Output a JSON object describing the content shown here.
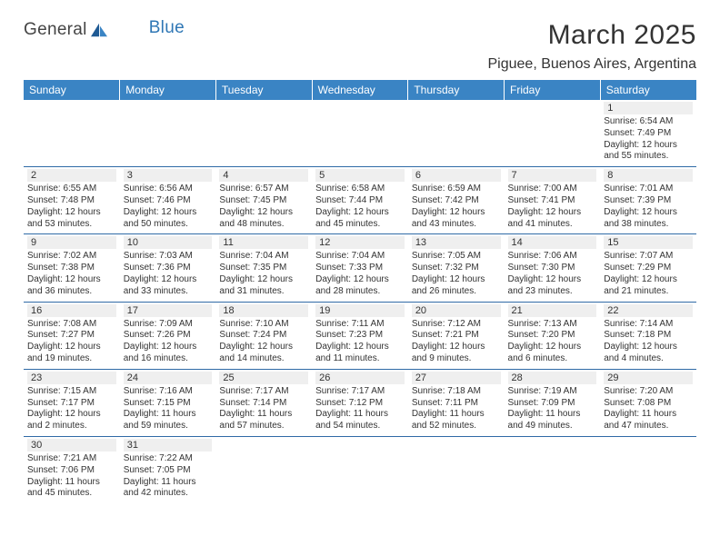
{
  "logo": {
    "text1": "General",
    "text2": "Blue"
  },
  "title": "March 2025",
  "location": "Piguee, Buenos Aires, Argentina",
  "colors": {
    "header_bg": "#3a84c4",
    "header_fg": "#ffffff",
    "cell_border": "#2f6aa6",
    "daynum_bg": "#efefef",
    "logo_blue": "#2f77b5"
  },
  "fonts": {
    "title_size_pt": 22,
    "location_size_pt": 12,
    "dayheader_size_pt": 9,
    "cell_size_pt": 7.5
  },
  "day_headers": [
    "Sunday",
    "Monday",
    "Tuesday",
    "Wednesday",
    "Thursday",
    "Friday",
    "Saturday"
  ],
  "weeks": [
    [
      null,
      null,
      null,
      null,
      null,
      null,
      {
        "n": "1",
        "rise": "6:54 AM",
        "set": "7:49 PM",
        "dur": "12 hours and 55 minutes."
      }
    ],
    [
      {
        "n": "2",
        "rise": "6:55 AM",
        "set": "7:48 PM",
        "dur": "12 hours and 53 minutes."
      },
      {
        "n": "3",
        "rise": "6:56 AM",
        "set": "7:46 PM",
        "dur": "12 hours and 50 minutes."
      },
      {
        "n": "4",
        "rise": "6:57 AM",
        "set": "7:45 PM",
        "dur": "12 hours and 48 minutes."
      },
      {
        "n": "5",
        "rise": "6:58 AM",
        "set": "7:44 PM",
        "dur": "12 hours and 45 minutes."
      },
      {
        "n": "6",
        "rise": "6:59 AM",
        "set": "7:42 PM",
        "dur": "12 hours and 43 minutes."
      },
      {
        "n": "7",
        "rise": "7:00 AM",
        "set": "7:41 PM",
        "dur": "12 hours and 41 minutes."
      },
      {
        "n": "8",
        "rise": "7:01 AM",
        "set": "7:39 PM",
        "dur": "12 hours and 38 minutes."
      }
    ],
    [
      {
        "n": "9",
        "rise": "7:02 AM",
        "set": "7:38 PM",
        "dur": "12 hours and 36 minutes."
      },
      {
        "n": "10",
        "rise": "7:03 AM",
        "set": "7:36 PM",
        "dur": "12 hours and 33 minutes."
      },
      {
        "n": "11",
        "rise": "7:04 AM",
        "set": "7:35 PM",
        "dur": "12 hours and 31 minutes."
      },
      {
        "n": "12",
        "rise": "7:04 AM",
        "set": "7:33 PM",
        "dur": "12 hours and 28 minutes."
      },
      {
        "n": "13",
        "rise": "7:05 AM",
        "set": "7:32 PM",
        "dur": "12 hours and 26 minutes."
      },
      {
        "n": "14",
        "rise": "7:06 AM",
        "set": "7:30 PM",
        "dur": "12 hours and 23 minutes."
      },
      {
        "n": "15",
        "rise": "7:07 AM",
        "set": "7:29 PM",
        "dur": "12 hours and 21 minutes."
      }
    ],
    [
      {
        "n": "16",
        "rise": "7:08 AM",
        "set": "7:27 PM",
        "dur": "12 hours and 19 minutes."
      },
      {
        "n": "17",
        "rise": "7:09 AM",
        "set": "7:26 PM",
        "dur": "12 hours and 16 minutes."
      },
      {
        "n": "18",
        "rise": "7:10 AM",
        "set": "7:24 PM",
        "dur": "12 hours and 14 minutes."
      },
      {
        "n": "19",
        "rise": "7:11 AM",
        "set": "7:23 PM",
        "dur": "12 hours and 11 minutes."
      },
      {
        "n": "20",
        "rise": "7:12 AM",
        "set": "7:21 PM",
        "dur": "12 hours and 9 minutes."
      },
      {
        "n": "21",
        "rise": "7:13 AM",
        "set": "7:20 PM",
        "dur": "12 hours and 6 minutes."
      },
      {
        "n": "22",
        "rise": "7:14 AM",
        "set": "7:18 PM",
        "dur": "12 hours and 4 minutes."
      }
    ],
    [
      {
        "n": "23",
        "rise": "7:15 AM",
        "set": "7:17 PM",
        "dur": "12 hours and 2 minutes."
      },
      {
        "n": "24",
        "rise": "7:16 AM",
        "set": "7:15 PM",
        "dur": "11 hours and 59 minutes."
      },
      {
        "n": "25",
        "rise": "7:17 AM",
        "set": "7:14 PM",
        "dur": "11 hours and 57 minutes."
      },
      {
        "n": "26",
        "rise": "7:17 AM",
        "set": "7:12 PM",
        "dur": "11 hours and 54 minutes."
      },
      {
        "n": "27",
        "rise": "7:18 AM",
        "set": "7:11 PM",
        "dur": "11 hours and 52 minutes."
      },
      {
        "n": "28",
        "rise": "7:19 AM",
        "set": "7:09 PM",
        "dur": "11 hours and 49 minutes."
      },
      {
        "n": "29",
        "rise": "7:20 AM",
        "set": "7:08 PM",
        "dur": "11 hours and 47 minutes."
      }
    ],
    [
      {
        "n": "30",
        "rise": "7:21 AM",
        "set": "7:06 PM",
        "dur": "11 hours and 45 minutes."
      },
      {
        "n": "31",
        "rise": "7:22 AM",
        "set": "7:05 PM",
        "dur": "11 hours and 42 minutes."
      },
      null,
      null,
      null,
      null,
      null
    ]
  ],
  "labels": {
    "sunrise": "Sunrise:",
    "sunset": "Sunset:",
    "daylight": "Daylight:"
  }
}
